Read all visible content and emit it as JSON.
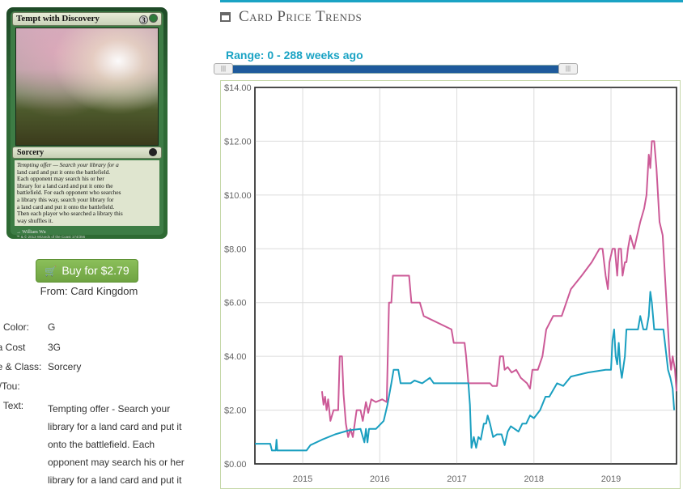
{
  "card": {
    "name": "Tempt with Discovery",
    "mana_cost_generic": "3",
    "type_line": "Sorcery",
    "oracle_lines": [
      "Tempting offer — Search your library for a",
      "land card and put it onto the battlefield.",
      "Each opponent may search his or her",
      "library for a land card and put it onto the",
      "battlefield. For each opponent who searches",
      "a library this way, search your library for",
      "a land card and put it onto the battlefield.",
      "Then each player who searched a library this",
      "way shuffles it."
    ],
    "artist": "William Wu",
    "copyright": "™ & © 2013 Wizards of the Coast 174/356"
  },
  "buy": {
    "label": "Buy for $2.79",
    "from": "From: Card Kingdom"
  },
  "details": [
    {
      "label": "rd Color:",
      "value": "G"
    },
    {
      "label": "na Cost",
      "value": "3G"
    },
    {
      "label": "pe & Class:",
      "value": "Sorcery"
    },
    {
      "label": "w/Tou:",
      "value": ""
    },
    {
      "label": "rd Text:",
      "value": ""
    }
  ],
  "card_text_lines": [
    "Tempting offer - Search your",
    "library for a land card and put it",
    "onto the battlefield. Each",
    "opponent may search his or her",
    "library for a land card and put it"
  ],
  "panel": {
    "title": "Card Price Trends",
    "range_label": "Range: 0 - 288 weeks ago",
    "accent": "#1aa3c4"
  },
  "chart_data": {
    "type": "line",
    "xlim": [
      2014.38,
      2019.85
    ],
    "ylim": [
      0,
      14
    ],
    "yticks": [
      "$0.00",
      "$2.00",
      "$4.00",
      "$6.00",
      "$8.00",
      "$10.00",
      "$12.00",
      "$14.00"
    ],
    "ytick_values": [
      0,
      2,
      4,
      6,
      8,
      10,
      12,
      14
    ],
    "xticks": [
      "2015",
      "2016",
      "2017",
      "2018",
      "2019"
    ],
    "xtick_values": [
      2015,
      2016,
      2017,
      2018,
      2019
    ],
    "grid": true,
    "series": [
      {
        "color": "#cc5a97",
        "points": [
          [
            2015.25,
            2.7
          ],
          [
            2015.27,
            2.2
          ],
          [
            2015.29,
            2.5
          ],
          [
            2015.31,
            2.0
          ],
          [
            2015.33,
            2.4
          ],
          [
            2015.36,
            1.6
          ],
          [
            2015.4,
            2.0
          ],
          [
            2015.46,
            2.0
          ],
          [
            2015.48,
            4.0
          ],
          [
            2015.51,
            4.0
          ],
          [
            2015.53,
            2.6
          ],
          [
            2015.56,
            1.5
          ],
          [
            2015.59,
            1.0
          ],
          [
            2015.62,
            1.3
          ],
          [
            2015.65,
            1.0
          ],
          [
            2015.7,
            2.0
          ],
          [
            2015.75,
            2.0
          ],
          [
            2015.78,
            1.6
          ],
          [
            2015.82,
            2.3
          ],
          [
            2015.85,
            1.9
          ],
          [
            2015.89,
            2.4
          ],
          [
            2015.95,
            2.3
          ],
          [
            2016.03,
            2.4
          ],
          [
            2016.09,
            2.3
          ],
          [
            2016.12,
            6.0
          ],
          [
            2016.15,
            6.0
          ],
          [
            2016.17,
            7.0
          ],
          [
            2016.38,
            7.0
          ],
          [
            2016.41,
            6.0
          ],
          [
            2016.52,
            6.0
          ],
          [
            2016.57,
            5.5
          ],
          [
            2016.93,
            5.0
          ],
          [
            2016.96,
            4.5
          ],
          [
            2017.1,
            4.5
          ],
          [
            2017.12,
            4.0
          ],
          [
            2017.15,
            3.0
          ],
          [
            2017.43,
            3.0
          ],
          [
            2017.46,
            2.9
          ],
          [
            2017.52,
            2.9
          ],
          [
            2017.56,
            4.0
          ],
          [
            2017.6,
            4.0
          ],
          [
            2017.62,
            3.5
          ],
          [
            2017.66,
            3.6
          ],
          [
            2017.71,
            3.4
          ],
          [
            2017.77,
            3.5
          ],
          [
            2017.83,
            3.2
          ],
          [
            2017.91,
            3.0
          ],
          [
            2017.95,
            2.8
          ],
          [
            2017.98,
            3.5
          ],
          [
            2018.05,
            3.5
          ],
          [
            2018.11,
            4.0
          ],
          [
            2018.16,
            5.0
          ],
          [
            2018.25,
            5.5
          ],
          [
            2018.36,
            5.5
          ],
          [
            2018.48,
            6.5
          ],
          [
            2018.62,
            7.0
          ],
          [
            2018.75,
            7.5
          ],
          [
            2018.85,
            8.0
          ],
          [
            2018.89,
            8.0
          ],
          [
            2018.91,
            7.5
          ],
          [
            2018.93,
            7.0
          ],
          [
            2018.96,
            6.5
          ],
          [
            2018.98,
            7.5
          ],
          [
            2019.02,
            8.0
          ],
          [
            2019.05,
            8.0
          ],
          [
            2019.08,
            7.0
          ],
          [
            2019.1,
            8.0
          ],
          [
            2019.13,
            8.0
          ],
          [
            2019.15,
            7.0
          ],
          [
            2019.18,
            7.5
          ],
          [
            2019.2,
            7.5
          ],
          [
            2019.22,
            8.0
          ],
          [
            2019.25,
            8.5
          ],
          [
            2019.3,
            8.0
          ],
          [
            2019.38,
            9.0
          ],
          [
            2019.43,
            9.5
          ],
          [
            2019.46,
            10.0
          ],
          [
            2019.49,
            11.5
          ],
          [
            2019.51,
            11.0
          ],
          [
            2019.53,
            12.0
          ],
          [
            2019.56,
            12.0
          ],
          [
            2019.59,
            11.0
          ],
          [
            2019.63,
            9.0
          ],
          [
            2019.67,
            8.5
          ],
          [
            2019.7,
            7.0
          ],
          [
            2019.73,
            5.5
          ],
          [
            2019.76,
            4.0
          ],
          [
            2019.78,
            3.5
          ],
          [
            2019.8,
            4.0
          ],
          [
            2019.83,
            3.5
          ],
          [
            2019.85,
            2.7
          ]
        ]
      },
      {
        "color": "#1a9fc0",
        "points": [
          [
            2014.38,
            0.75
          ],
          [
            2014.58,
            0.75
          ],
          [
            2014.6,
            0.5
          ],
          [
            2014.65,
            0.5
          ],
          [
            2014.66,
            0.9
          ],
          [
            2014.67,
            0.5
          ],
          [
            2015.05,
            0.5
          ],
          [
            2015.1,
            0.7
          ],
          [
            2015.25,
            0.9
          ],
          [
            2015.42,
            1.1
          ],
          [
            2015.6,
            1.25
          ],
          [
            2015.75,
            1.3
          ],
          [
            2015.8,
            0.8
          ],
          [
            2015.82,
            1.3
          ],
          [
            2015.84,
            0.8
          ],
          [
            2015.86,
            1.3
          ],
          [
            2015.95,
            1.3
          ],
          [
            2016.05,
            1.6
          ],
          [
            2016.1,
            2.2
          ],
          [
            2016.15,
            3.0
          ],
          [
            2016.18,
            3.5
          ],
          [
            2016.24,
            3.5
          ],
          [
            2016.27,
            3.0
          ],
          [
            2016.4,
            3.0
          ],
          [
            2016.45,
            3.1
          ],
          [
            2016.55,
            3.0
          ],
          [
            2016.65,
            3.2
          ],
          [
            2016.7,
            3.0
          ],
          [
            2017.15,
            3.0
          ],
          [
            2017.17,
            2.2
          ],
          [
            2017.19,
            0.6
          ],
          [
            2017.22,
            1.0
          ],
          [
            2017.25,
            0.6
          ],
          [
            2017.28,
            1.0
          ],
          [
            2017.31,
            0.9
          ],
          [
            2017.35,
            1.5
          ],
          [
            2017.38,
            1.5
          ],
          [
            2017.4,
            1.8
          ],
          [
            2017.43,
            1.5
          ],
          [
            2017.47,
            1.0
          ],
          [
            2017.52,
            1.1
          ],
          [
            2017.58,
            1.1
          ],
          [
            2017.62,
            0.7
          ],
          [
            2017.66,
            1.2
          ],
          [
            2017.7,
            1.4
          ],
          [
            2017.8,
            1.2
          ],
          [
            2017.85,
            1.5
          ],
          [
            2017.9,
            1.5
          ],
          [
            2017.95,
            1.8
          ],
          [
            2018.0,
            1.7
          ],
          [
            2018.08,
            2.0
          ],
          [
            2018.15,
            2.5
          ],
          [
            2018.2,
            2.5
          ],
          [
            2018.3,
            3.0
          ],
          [
            2018.38,
            2.9
          ],
          [
            2018.48,
            3.25
          ],
          [
            2018.7,
            3.4
          ],
          [
            2018.93,
            3.5
          ],
          [
            2019.0,
            3.5
          ],
          [
            2019.02,
            4.6
          ],
          [
            2019.04,
            5.0
          ],
          [
            2019.06,
            4.0
          ],
          [
            2019.08,
            3.7
          ],
          [
            2019.1,
            4.5
          ],
          [
            2019.12,
            3.6
          ],
          [
            2019.14,
            3.2
          ],
          [
            2019.18,
            4.0
          ],
          [
            2019.2,
            5.0
          ],
          [
            2019.25,
            5.0
          ],
          [
            2019.35,
            5.0
          ],
          [
            2019.38,
            5.5
          ],
          [
            2019.42,
            5.0
          ],
          [
            2019.46,
            5.0
          ],
          [
            2019.49,
            5.5
          ],
          [
            2019.51,
            6.4
          ],
          [
            2019.53,
            6.0
          ],
          [
            2019.56,
            5.0
          ],
          [
            2019.68,
            5.0
          ],
          [
            2019.7,
            4.5
          ],
          [
            2019.72,
            4.0
          ],
          [
            2019.74,
            3.5
          ],
          [
            2019.77,
            3.2
          ],
          [
            2019.8,
            2.8
          ],
          [
            2019.82,
            2.0
          ]
        ]
      }
    ]
  }
}
